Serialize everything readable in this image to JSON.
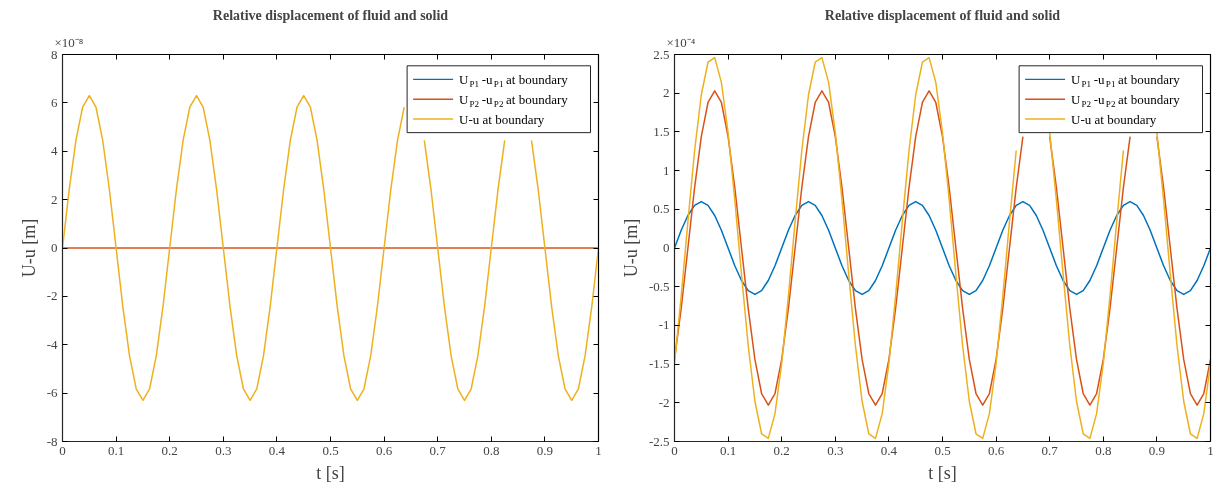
{
  "chart_data": [
    {
      "type": "line",
      "title": "Relative displacement of fluid and solid",
      "xlabel": "t [s]",
      "ylabel": "U-u [m]",
      "annotations": [
        "×10⁻⁸"
      ],
      "x": [
        0,
        0.0125,
        0.025,
        0.0375,
        0.05,
        0.0625,
        0.075,
        0.0875,
        0.1,
        0.1125,
        0.125,
        0.1375,
        0.15,
        0.1625,
        0.175,
        0.1875,
        0.2,
        0.2125,
        0.225,
        0.2375,
        0.25,
        0.2625,
        0.275,
        0.2875,
        0.3,
        0.3125,
        0.325,
        0.3375,
        0.35,
        0.3625,
        0.375,
        0.3875,
        0.4,
        0.4125,
        0.425,
        0.4375,
        0.45,
        0.4625,
        0.475,
        0.4875,
        0.5,
        0.5125,
        0.525,
        0.5375,
        0.55,
        0.5625,
        0.575,
        0.5875,
        0.6,
        0.6125,
        0.625,
        0.6375,
        0.65,
        0.6625,
        0.675,
        0.6875,
        0.7,
        0.7125,
        0.725,
        0.7375,
        0.75,
        0.7625,
        0.775,
        0.7875,
        0.8,
        0.8125,
        0.825,
        0.8375,
        0.85,
        0.8625,
        0.875,
        0.8875,
        0.9,
        0.9125,
        0.925,
        0.9375,
        0.95,
        0.9625,
        0.975,
        0.9875,
        1
      ],
      "series": [
        {
          "name": "U$_{P1}$-u$_{P1}$ at boundary",
          "color": "#0072bd",
          "values": [
            null,
            null,
            null,
            null,
            null,
            null,
            null,
            null,
            null,
            null,
            null,
            null,
            null,
            null,
            null,
            null,
            null,
            null,
            null,
            null,
            null,
            null,
            null,
            null,
            null,
            null,
            null,
            null,
            null,
            null,
            null,
            null,
            null,
            null,
            null,
            null,
            null,
            null,
            null,
            null,
            null,
            null,
            null,
            null,
            null,
            null,
            null,
            null,
            null,
            null,
            null,
            null,
            null,
            null,
            null,
            null,
            null,
            null,
            null,
            null,
            null,
            null,
            null,
            null,
            null,
            null,
            null,
            null,
            null,
            null,
            null,
            null,
            null,
            null,
            null,
            null,
            null,
            null,
            null,
            null,
            null
          ]
        },
        {
          "name": "U$_{P2}$-u$_{P2}$ at boundary",
          "color": "#d95319",
          "values": [
            0,
            0,
            0,
            0,
            0,
            0,
            0,
            0,
            0,
            0,
            0,
            0,
            0,
            0,
            0,
            0,
            0,
            0,
            0,
            0,
            0,
            0,
            0,
            0,
            0,
            0,
            0,
            0,
            0,
            0,
            0,
            0,
            0,
            0,
            0,
            0,
            0,
            0,
            0,
            0,
            0,
            0,
            0,
            0,
            0,
            0,
            0,
            0,
            0,
            0,
            0,
            0,
            0,
            0,
            0,
            0,
            0,
            0,
            0,
            0,
            0,
            0,
            0,
            0,
            0,
            0,
            0,
            0,
            0,
            0,
            0,
            0,
            0,
            0,
            0,
            0,
            0,
            0,
            0,
            0,
            0
          ]
        },
        {
          "name": "U-u at boundary",
          "color": "#edb120",
          "values": [
            0,
            2.41,
            4.45,
            5.82,
            6.3,
            5.82,
            4.45,
            2.41,
            0,
            -2.41,
            -4.45,
            -5.82,
            -6.3,
            -5.82,
            -4.45,
            -2.41,
            0,
            2.41,
            4.45,
            5.82,
            6.3,
            5.82,
            4.45,
            2.41,
            0,
            -2.41,
            -4.45,
            -5.82,
            -6.3,
            -5.82,
            -4.45,
            -2.41,
            0,
            2.41,
            4.45,
            5.82,
            6.3,
            5.82,
            4.45,
            2.41,
            0,
            -2.41,
            -4.45,
            -5.82,
            -6.3,
            -5.82,
            -4.45,
            -2.41,
            0,
            2.41,
            4.45,
            5.82,
            null,
            null,
            4.45,
            2.41,
            0,
            -2.41,
            -4.45,
            -5.82,
            -6.3,
            -5.82,
            -4.45,
            -2.41,
            0,
            2.41,
            4.45,
            null,
            null,
            null,
            4.45,
            2.41,
            0,
            -2.41,
            -4.45,
            -5.82,
            -6.3,
            -5.82,
            -4.45,
            -2.41,
            0
          ]
        }
      ],
      "xlim": [
        0,
        1
      ],
      "xticks": [
        0,
        0.1,
        0.2,
        0.3,
        0.4,
        0.5,
        0.6,
        0.7,
        0.8,
        0.9,
        1
      ],
      "ylim": [
        -8,
        8
      ],
      "yticks": [
        -8,
        -6,
        -4,
        -2,
        0,
        2,
        4,
        6,
        8
      ],
      "legend": "top right",
      "grid": false,
      "line_style": "solid"
    },
    {
      "type": "line",
      "title": "Relative displacement of fluid and solid",
      "xlabel": "t [s]",
      "ylabel": "U-u [m]",
      "annotations": [
        "×10⁻⁴"
      ],
      "x": [
        0,
        0.0125,
        0.025,
        0.0375,
        0.05,
        0.0625,
        0.075,
        0.0875,
        0.1,
        0.1125,
        0.125,
        0.1375,
        0.15,
        0.1625,
        0.175,
        0.1875,
        0.2,
        0.2125,
        0.225,
        0.2375,
        0.25,
        0.2625,
        0.275,
        0.2875,
        0.3,
        0.3125,
        0.325,
        0.3375,
        0.35,
        0.3625,
        0.375,
        0.3875,
        0.4,
        0.4125,
        0.425,
        0.4375,
        0.45,
        0.4625,
        0.475,
        0.4875,
        0.5,
        0.5125,
        0.525,
        0.5375,
        0.55,
        0.5625,
        0.575,
        0.5875,
        0.6,
        0.6125,
        0.625,
        0.6375,
        0.65,
        0.6625,
        0.675,
        0.6875,
        0.7,
        0.7125,
        0.725,
        0.7375,
        0.75,
        0.7625,
        0.775,
        0.7875,
        0.8,
        0.8125,
        0.825,
        0.8375,
        0.85,
        0.8625,
        0.875,
        0.8875,
        0.9,
        0.9125,
        0.925,
        0.9375,
        0.95,
        0.9625,
        0.975,
        0.9875,
        1
      ],
      "series": [
        {
          "name": "U$_{P1}$-u$_{P1}$ at boundary",
          "color": "#0072bd",
          "values": [
            0,
            0.23,
            0.42,
            0.55,
            0.6,
            0.55,
            0.42,
            0.23,
            0,
            -0.23,
            -0.42,
            -0.55,
            -0.6,
            -0.55,
            -0.42,
            -0.23,
            0,
            0.23,
            0.42,
            0.55,
            0.6,
            0.55,
            0.42,
            0.23,
            0,
            -0.23,
            -0.42,
            -0.55,
            -0.6,
            -0.55,
            -0.42,
            -0.23,
            0,
            0.23,
            0.42,
            0.55,
            0.6,
            0.55,
            0.42,
            0.23,
            0,
            -0.23,
            -0.42,
            -0.55,
            -0.6,
            -0.55,
            -0.42,
            -0.23,
            0,
            0.23,
            0.42,
            0.55,
            0.6,
            0.55,
            0.42,
            0.23,
            0,
            -0.23,
            -0.42,
            -0.55,
            -0.6,
            -0.55,
            -0.42,
            -0.23,
            0,
            0.23,
            0.42,
            0.55,
            0.6,
            0.55,
            0.42,
            0.23,
            0,
            -0.23,
            -0.42,
            -0.55,
            -0.6,
            -0.55,
            -0.42,
            -0.23,
            0
          ]
        },
        {
          "name": "U$_{P2}$-u$_{P2}$ at boundary",
          "color": "#d95319",
          "values": [
            -1.44,
            -0.78,
            0,
            0.78,
            1.44,
            1.88,
            2.03,
            1.88,
            1.44,
            0.78,
            0,
            -0.78,
            -1.44,
            -1.88,
            -2.03,
            -1.88,
            -1.44,
            -0.78,
            0,
            0.78,
            1.44,
            1.88,
            2.03,
            1.88,
            1.44,
            0.78,
            0,
            -0.78,
            -1.44,
            -1.88,
            -2.03,
            -1.88,
            -1.44,
            -0.78,
            0,
            0.78,
            1.44,
            1.88,
            2.03,
            1.88,
            1.44,
            0.78,
            0,
            -0.78,
            -1.44,
            -1.88,
            -2.03,
            -1.88,
            -1.44,
            -0.78,
            0,
            0.78,
            1.44,
            null,
            null,
            null,
            1.44,
            0.78,
            0,
            -0.78,
            -1.44,
            -1.88,
            -2.03,
            -1.88,
            -1.44,
            -0.78,
            0,
            0.78,
            1.44,
            null,
            null,
            null,
            1.44,
            0.78,
            0,
            -0.78,
            -1.44,
            -1.88,
            -2.03,
            -1.88,
            -1.44
          ]
        },
        {
          "name": "U-u at boundary",
          "color": "#edb120",
          "values": [
            -1.49,
            -0.62,
            0.34,
            1.26,
            1.98,
            2.4,
            2.46,
            2.14,
            1.49,
            0.62,
            -0.34,
            -1.26,
            -1.98,
            -2.4,
            -2.46,
            -2.14,
            -1.49,
            -0.62,
            0.34,
            1.26,
            1.98,
            2.4,
            2.46,
            2.14,
            1.49,
            0.62,
            -0.34,
            -1.26,
            -1.98,
            -2.4,
            -2.46,
            -2.14,
            -1.49,
            -0.62,
            0.34,
            1.26,
            1.98,
            2.4,
            2.46,
            2.14,
            1.49,
            0.62,
            -0.34,
            -1.26,
            -1.98,
            -2.4,
            -2.46,
            -2.14,
            -1.49,
            -0.62,
            0.34,
            1.26,
            null,
            null,
            null,
            null,
            1.49,
            0.62,
            -0.34,
            -1.26,
            -1.98,
            -2.4,
            -2.46,
            -2.14,
            -1.49,
            -0.62,
            0.34,
            1.26,
            null,
            null,
            null,
            null,
            1.49,
            0.62,
            -0.34,
            -1.26,
            -1.98,
            -2.4,
            -2.46,
            -2.14,
            -1.49
          ]
        }
      ],
      "xlim": [
        0,
        1
      ],
      "xticks": [
        0,
        0.1,
        0.2,
        0.3,
        0.4,
        0.5,
        0.6,
        0.7,
        0.8,
        0.9,
        1
      ],
      "ylim": [
        -2.5,
        2.5
      ],
      "yticks": [
        -2.5,
        -2,
        -1.5,
        -1,
        -0.5,
        0,
        0.5,
        1,
        1.5,
        2,
        2.5
      ],
      "legend": "top right",
      "grid": false,
      "line_style": "solid"
    }
  ]
}
